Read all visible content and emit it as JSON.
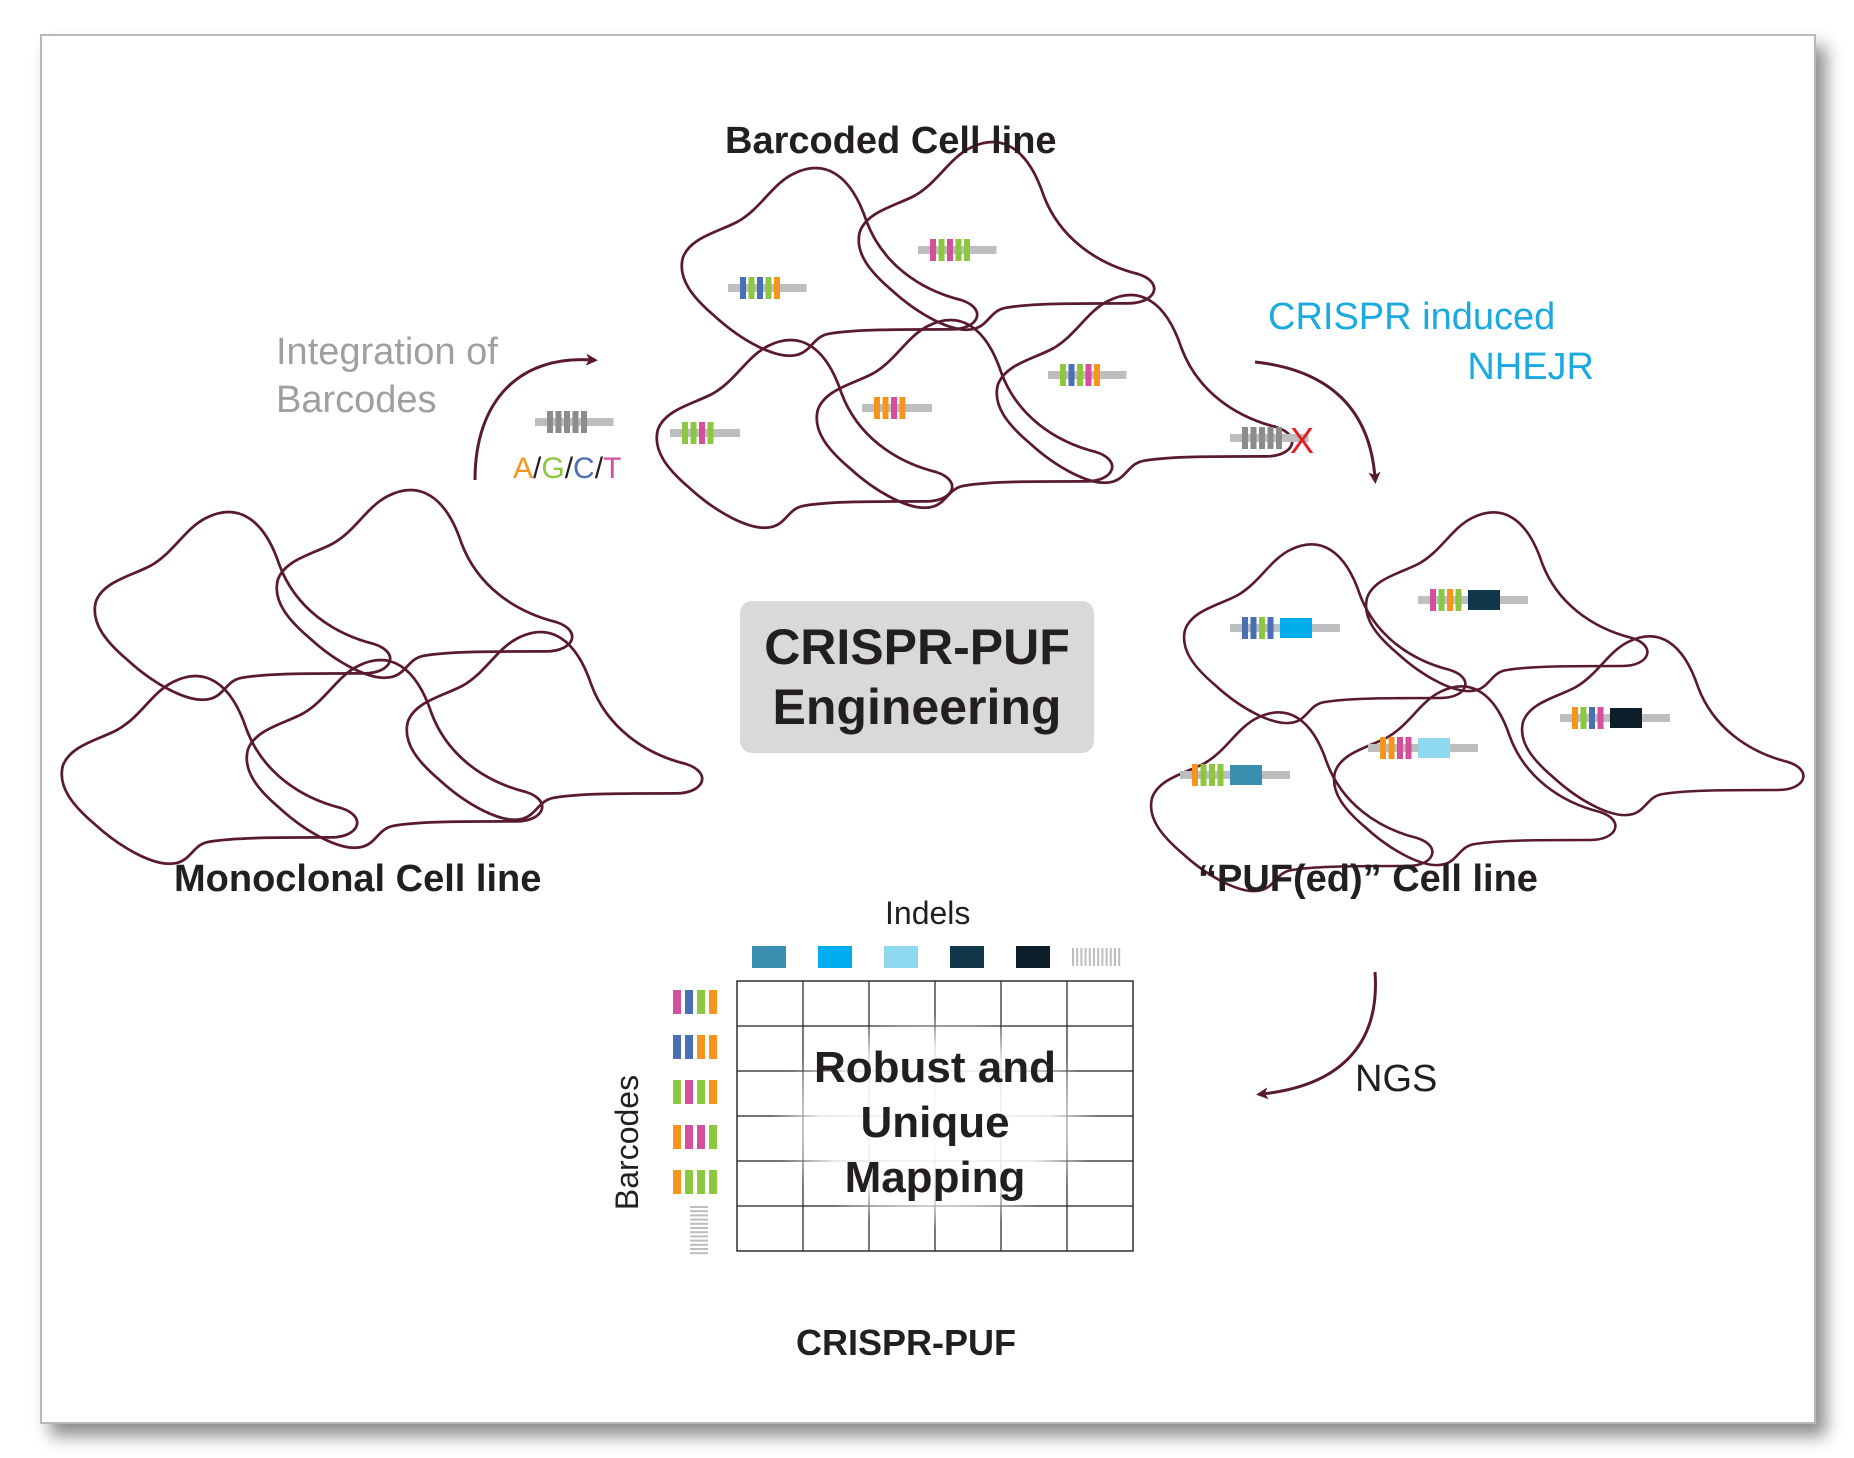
{
  "labels": {
    "barcoded": "Barcoded Cell line",
    "integration_line1": "Integration of",
    "integration_line2": "Barcodes",
    "crispr_line1": "CRISPR induced",
    "crispr_line2": "NHEJR",
    "center_line1": "CRISPR-PUF",
    "center_line2": "Engineering",
    "monoclonal": "Monoclonal Cell line",
    "pufed": "“PUF(ed)” Cell line",
    "indels": "Indels",
    "ngs": "NGS",
    "barcodes_axis": "Barcodes",
    "mapping_line1": "Robust and",
    "mapping_line2": "Unique",
    "mapping_line3": "Mapping",
    "bottom_title": "CRISPR-PUF"
  },
  "nucleotides": [
    {
      "letter": "A",
      "color": "#f7941d"
    },
    {
      "letter": "G",
      "color": "#8dc63f"
    },
    {
      "letter": "C",
      "color": "#4a6fb5"
    },
    {
      "letter": "T",
      "color": "#d54f9d"
    }
  ],
  "mutation_mark": "X",
  "colors": {
    "cell_outline": "#5a1a2e",
    "arrow": "#5a1a2e",
    "integration_text": "#9d9fa2",
    "crispr_text": "#1ba9e1",
    "mutation_mark": "#e31e24",
    "barcode_backbone": "#bcbec0",
    "center_box": "#d9d9d9"
  },
  "indel_colors": [
    "#3a8fb0",
    "#00aeef",
    "#8ed8f0",
    "#11384a",
    "#0d1f2b"
  ]
}
